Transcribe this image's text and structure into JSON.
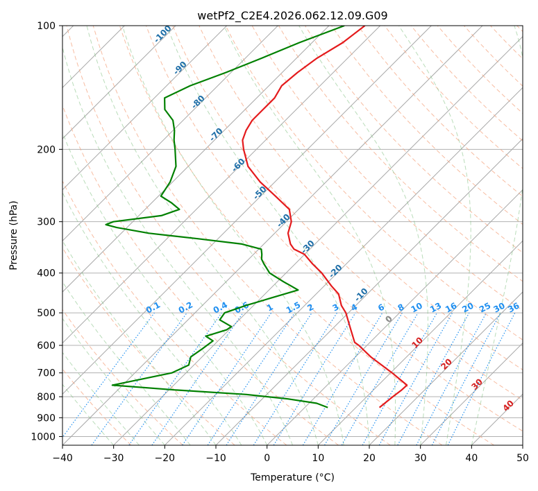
{
  "chart_data": {
    "type": "line",
    "title": "wetPf2_C2E4.2026.062.12.09.G09",
    "xlabel": "Temperature (°C)",
    "ylabel": "Pressure (hPa)",
    "xlim": [
      -40,
      50
    ],
    "ylim": [
      1050,
      100
    ],
    "y_scale": "log",
    "skew_T": true,
    "grid": true,
    "x_ticks": [
      -40,
      -30,
      -20,
      -10,
      0,
      10,
      20,
      30,
      40,
      50
    ],
    "y_ticks": [
      1000,
      900,
      800,
      700,
      600,
      500,
      400,
      300,
      200,
      100
    ],
    "series": [
      {
        "color": "#e41a1c",
        "points": [
          [
            100,
            -63.0
          ],
          [
            110,
            -64.0
          ],
          [
            120,
            -66.0
          ],
          [
            130,
            -67.0
          ],
          [
            140,
            -67.5
          ],
          [
            150,
            -66.5
          ],
          [
            160,
            -66.5
          ],
          [
            170,
            -66.5
          ],
          [
            180,
            -65.7
          ],
          [
            190,
            -64.5
          ],
          [
            200,
            -62.5
          ],
          [
            220,
            -58.3
          ],
          [
            240,
            -52.9
          ],
          [
            260,
            -47.1
          ],
          [
            280,
            -41.8
          ],
          [
            300,
            -39.0
          ],
          [
            320,
            -37.4
          ],
          [
            340,
            -34.8
          ],
          [
            350,
            -33.1
          ],
          [
            360,
            -30.1
          ],
          [
            380,
            -26.6
          ],
          [
            400,
            -23.0
          ],
          [
            430,
            -18.6
          ],
          [
            450,
            -15.6
          ],
          [
            480,
            -12.8
          ],
          [
            500,
            -10.5
          ],
          [
            550,
            -6.2
          ],
          [
            590,
            -3.0
          ],
          [
            600,
            -1.6
          ],
          [
            640,
            3.0
          ],
          [
            700,
            10.3
          ],
          [
            750,
            15.6
          ],
          [
            770,
            15.5
          ],
          [
            800,
            15.1
          ],
          [
            850,
            14.6
          ]
        ]
      },
      {
        "color": "#008000",
        "points": [
          [
            100,
            -67.0
          ],
          [
            110,
            -72.5
          ],
          [
            120,
            -76.8
          ],
          [
            130,
            -81.0
          ],
          [
            140,
            -85.4
          ],
          [
            150,
            -88.0
          ],
          [
            160,
            -85.7
          ],
          [
            170,
            -82.0
          ],
          [
            180,
            -79.7
          ],
          [
            190,
            -77.9
          ],
          [
            200,
            -75.9
          ],
          [
            220,
            -72.4
          ],
          [
            240,
            -70.5
          ],
          [
            260,
            -69.5
          ],
          [
            270,
            -66.1
          ],
          [
            280,
            -63.3
          ],
          [
            290,
            -65.6
          ],
          [
            300,
            -73.8
          ],
          [
            305,
            -74.7
          ],
          [
            310,
            -72.0
          ],
          [
            320,
            -64.6
          ],
          [
            330,
            -54.0
          ],
          [
            340,
            -44.3
          ],
          [
            350,
            -39.5
          ],
          [
            360,
            -38.4
          ],
          [
            370,
            -37.5
          ],
          [
            380,
            -36.1
          ],
          [
            400,
            -33.2
          ],
          [
            420,
            -28.8
          ],
          [
            430,
            -26.5
          ],
          [
            440,
            -24.3
          ],
          [
            460,
            -28.0
          ],
          [
            480,
            -31.5
          ],
          [
            500,
            -34.2
          ],
          [
            520,
            -33.8
          ],
          [
            540,
            -30.2
          ],
          [
            550,
            -30.5
          ],
          [
            570,
            -33.3
          ],
          [
            585,
            -31.0
          ],
          [
            610,
            -31.5
          ],
          [
            640,
            -32.2
          ],
          [
            670,
            -31.0
          ],
          [
            700,
            -32.8
          ],
          [
            750,
            -42.0
          ],
          [
            770,
            -29.0
          ],
          [
            790,
            -14.0
          ],
          [
            810,
            -5.0
          ],
          [
            830,
            1.5
          ],
          [
            850,
            4.5
          ]
        ]
      }
    ],
    "dry_adiabats_C": [
      -30,
      -20,
      -10,
      0,
      10,
      20,
      30,
      40,
      50,
      60,
      70,
      80,
      90,
      100,
      110,
      120,
      130,
      140,
      150,
      160,
      170,
      180,
      190,
      200
    ],
    "moist_adiabat_labels": [
      "-100",
      "-90",
      "-80",
      "-70",
      "-60",
      "-50",
      "-40",
      "-30",
      "-20",
      "-10",
      "0",
      "10",
      "20",
      "30",
      "40"
    ],
    "moist_adiabat_values": [
      -100,
      -90,
      -80,
      -70,
      -60,
      -50,
      -40,
      -30,
      -20,
      -10,
      0,
      10,
      20,
      30,
      40
    ],
    "mixing_ratio_labels": [
      "0.1",
      "0.2",
      "0.4",
      "0.6",
      "1",
      "1.5",
      "2",
      "3",
      "4",
      "6",
      "8",
      "10",
      "13",
      "16",
      "20",
      "25",
      "30",
      "36"
    ],
    "mixing_ratio_values": [
      0.1,
      0.2,
      0.4,
      0.6,
      1,
      1.5,
      2,
      3,
      4,
      6,
      8,
      10,
      13,
      16,
      20,
      25,
      30,
      36
    ]
  }
}
